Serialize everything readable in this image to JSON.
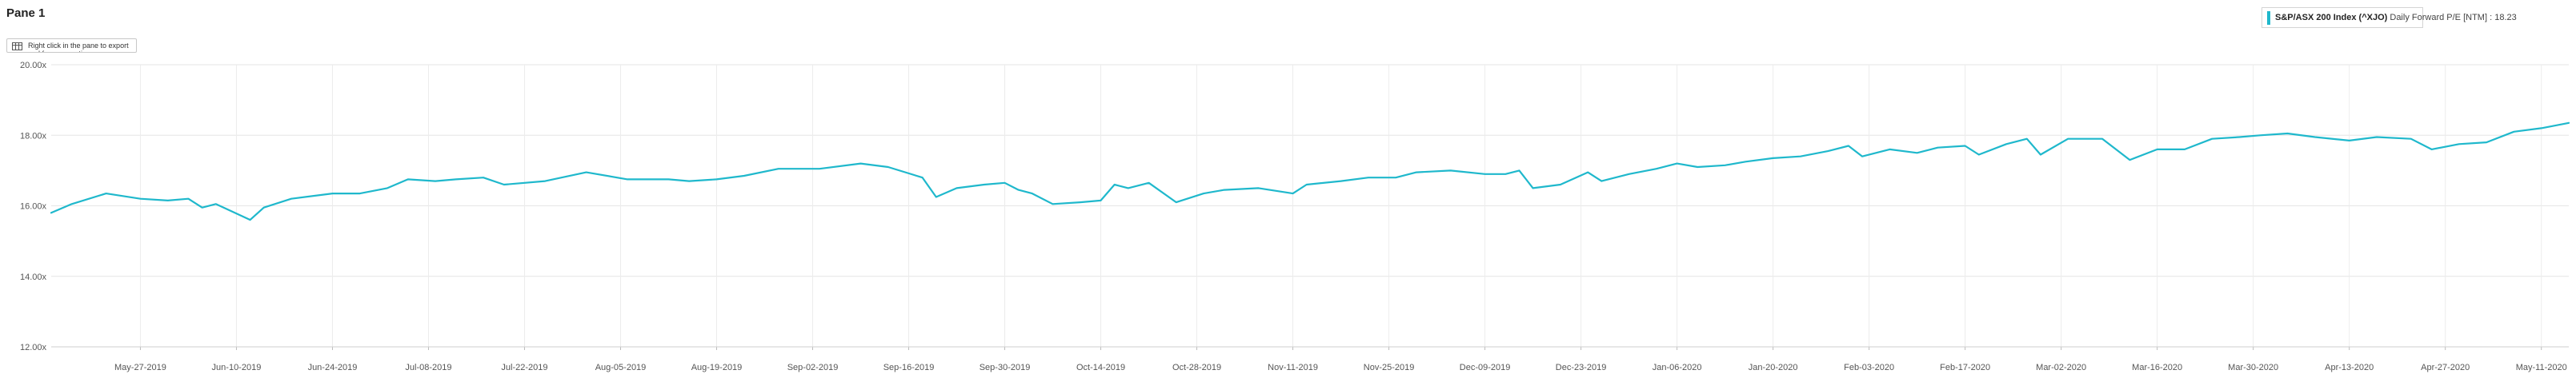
{
  "pane": {
    "title": "Pane 1",
    "hint_text": "Right click in the pane to export and for more options",
    "hint_icon": "export-table-icon"
  },
  "legend": {
    "series_name": "S&P/ASX 200 Index (^XJO)",
    "series_label": "Daily Forward P/E [NTM]",
    "separator": ":",
    "current_value": "18.23",
    "color": "#1fb8cc"
  },
  "chart_data": {
    "type": "line",
    "title": "",
    "xlabel": "",
    "ylabel": "",
    "ylim": [
      12,
      20
    ],
    "y_ticks": [
      "12.00x",
      "14.00x",
      "16.00x",
      "18.00x",
      "20.00x"
    ],
    "x_ticks": [
      "May-27-2019",
      "Jun-10-2019",
      "Jun-24-2019",
      "Jul-08-2019",
      "Jul-22-2019",
      "Aug-05-2019",
      "Aug-19-2019",
      "Sep-02-2019",
      "Sep-16-2019",
      "Sep-30-2019",
      "Oct-14-2019",
      "Oct-28-2019",
      "Nov-11-2019",
      "Nov-25-2019",
      "Dec-09-2019",
      "Dec-23-2019",
      "Jan-06-2020",
      "Jan-20-2020",
      "Feb-03-2020",
      "Feb-17-2020",
      "Mar-02-2020",
      "Mar-16-2020",
      "Mar-30-2020",
      "Apr-13-2020",
      "Apr-27-2020",
      "May-11-2020"
    ],
    "x_range": [
      "2019-05-14",
      "2020-05-15"
    ],
    "grid": true,
    "legend_position": "top-right",
    "series": [
      {
        "name": "S&P/ASX 200 Index (^XJO)",
        "color": "#1fb8cc",
        "points": [
          [
            "2019-05-14",
            15.8
          ],
          [
            "2019-05-17",
            16.05
          ],
          [
            "2019-05-22",
            16.35
          ],
          [
            "2019-05-27",
            16.2
          ],
          [
            "2019-05-31",
            16.15
          ],
          [
            "2019-06-03",
            16.2
          ],
          [
            "2019-06-05",
            15.95
          ],
          [
            "2019-06-07",
            16.05
          ],
          [
            "2019-06-12",
            15.6
          ],
          [
            "2019-06-14",
            15.95
          ],
          [
            "2019-06-18",
            16.2
          ],
          [
            "2019-06-24",
            16.35
          ],
          [
            "2019-06-28",
            16.35
          ],
          [
            "2019-07-02",
            16.5
          ],
          [
            "2019-07-05",
            16.75
          ],
          [
            "2019-07-09",
            16.7
          ],
          [
            "2019-07-12",
            16.75
          ],
          [
            "2019-07-16",
            16.8
          ],
          [
            "2019-07-19",
            16.6
          ],
          [
            "2019-07-25",
            16.7
          ],
          [
            "2019-07-31",
            16.95
          ],
          [
            "2019-08-06",
            16.75
          ],
          [
            "2019-08-12",
            16.75
          ],
          [
            "2019-08-15",
            16.7
          ],
          [
            "2019-08-19",
            16.75
          ],
          [
            "2019-08-23",
            16.85
          ],
          [
            "2019-08-28",
            17.05
          ],
          [
            "2019-09-03",
            17.05
          ],
          [
            "2019-09-09",
            17.2
          ],
          [
            "2019-09-13",
            17.1
          ],
          [
            "2019-09-18",
            16.8
          ],
          [
            "2019-09-20",
            16.25
          ],
          [
            "2019-09-23",
            16.5
          ],
          [
            "2019-09-27",
            16.6
          ],
          [
            "2019-09-30",
            16.65
          ],
          [
            "2019-10-02",
            16.45
          ],
          [
            "2019-10-04",
            16.35
          ],
          [
            "2019-10-07",
            16.05
          ],
          [
            "2019-10-11",
            16.1
          ],
          [
            "2019-10-14",
            16.15
          ],
          [
            "2019-10-16",
            16.6
          ],
          [
            "2019-10-18",
            16.5
          ],
          [
            "2019-10-21",
            16.65
          ],
          [
            "2019-10-25",
            16.1
          ],
          [
            "2019-10-29",
            16.35
          ],
          [
            "2019-11-01",
            16.45
          ],
          [
            "2019-11-06",
            16.5
          ],
          [
            "2019-11-11",
            16.35
          ],
          [
            "2019-11-13",
            16.6
          ],
          [
            "2019-11-18",
            16.7
          ],
          [
            "2019-11-22",
            16.8
          ],
          [
            "2019-11-26",
            16.8
          ],
          [
            "2019-11-29",
            16.95
          ],
          [
            "2019-12-04",
            17.0
          ],
          [
            "2019-12-09",
            16.9
          ],
          [
            "2019-12-12",
            16.9
          ],
          [
            "2019-12-14",
            17.0
          ],
          [
            "2019-12-16",
            16.5
          ],
          [
            "2019-12-20",
            16.6
          ],
          [
            "2019-12-24",
            16.95
          ],
          [
            "2019-12-26",
            16.7
          ],
          [
            "2019-12-30",
            16.9
          ],
          [
            "2020-01-03",
            17.05
          ],
          [
            "2020-01-06",
            17.2
          ],
          [
            "2020-01-09",
            17.1
          ],
          [
            "2020-01-13",
            17.15
          ],
          [
            "2020-01-16",
            17.25
          ],
          [
            "2020-01-20",
            17.35
          ],
          [
            "2020-01-24",
            17.4
          ],
          [
            "2020-01-28",
            17.55
          ],
          [
            "2020-01-31",
            17.7
          ],
          [
            "2020-02-02",
            17.4
          ],
          [
            "2020-02-06",
            17.6
          ],
          [
            "2020-02-10",
            17.5
          ],
          [
            "2020-02-13",
            17.65
          ],
          [
            "2020-02-17",
            17.7
          ],
          [
            "2020-02-19",
            17.45
          ],
          [
            "2020-02-23",
            17.75
          ],
          [
            "2020-02-26",
            17.9
          ],
          [
            "2020-02-28",
            17.45
          ],
          [
            "2020-03-03",
            17.9
          ],
          [
            "2020-03-08",
            17.9
          ],
          [
            "2020-03-12",
            17.3
          ],
          [
            "2020-03-16",
            17.6
          ],
          [
            "2020-03-20",
            17.6
          ],
          [
            "2020-03-24",
            17.9
          ],
          [
            "2020-03-28",
            17.95
          ],
          [
            "2020-03-31",
            18.0
          ],
          [
            "2020-04-04",
            18.05
          ],
          [
            "2020-04-08",
            17.95
          ],
          [
            "2020-04-13",
            17.85
          ],
          [
            "2020-04-17",
            17.95
          ],
          [
            "2020-04-22",
            17.9
          ],
          [
            "2020-04-25",
            17.6
          ],
          [
            "2020-04-29",
            17.75
          ],
          [
            "2020-05-03",
            17.8
          ],
          [
            "2020-05-07",
            18.1
          ],
          [
            "2020-05-11",
            18.2
          ],
          [
            "2020-05-15",
            18.35
          ]
        ]
      }
    ]
  }
}
